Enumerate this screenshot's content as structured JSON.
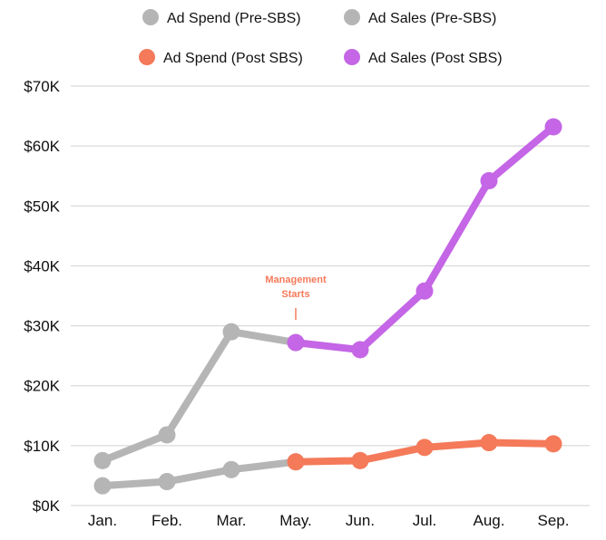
{
  "chart_data": {
    "type": "line",
    "title": "",
    "xlabel": "",
    "ylabel": "",
    "categories": [
      "Jan.",
      "Feb.",
      "Mar.",
      "May.",
      "Jun.",
      "Jul.",
      "Aug.",
      "Sep."
    ],
    "ylim": [
      0,
      70000
    ],
    "y_ticks": [
      {
        "value": 0,
        "label": "$0K"
      },
      {
        "value": 10000,
        "label": "$10K"
      },
      {
        "value": 20000,
        "label": "$20K"
      },
      {
        "value": 30000,
        "label": "$30K"
      },
      {
        "value": 40000,
        "label": "$40K"
      },
      {
        "value": 50000,
        "label": "$50K"
      },
      {
        "value": 60000,
        "label": "$60K"
      },
      {
        "value": 70000,
        "label": "$70K"
      }
    ],
    "grid": true,
    "legend_position": "top",
    "series": [
      {
        "name": "Ad Spend (Pre-SBS)",
        "color": "#b5b5b5",
        "values": [
          3300,
          4000,
          6000,
          7300,
          null,
          null,
          null,
          null
        ]
      },
      {
        "name": "Ad Sales (Pre-SBS)",
        "color": "#b5b5b5",
        "values": [
          7500,
          11800,
          29000,
          27200,
          null,
          null,
          null,
          null
        ]
      },
      {
        "name": "Ad Spend (Post SBS)",
        "color": "#f47a5a",
        "values": [
          null,
          null,
          null,
          7300,
          7500,
          9700,
          10500,
          10300
        ]
      },
      {
        "name": "Ad Sales (Post SBS)",
        "color": "#c466e6",
        "values": [
          null,
          null,
          null,
          27200,
          26000,
          35800,
          54200,
          63200
        ]
      }
    ],
    "annotations": [
      {
        "text_lines": [
          "Management",
          "Starts"
        ],
        "category": "May.",
        "color": "#f47a5a"
      }
    ]
  }
}
